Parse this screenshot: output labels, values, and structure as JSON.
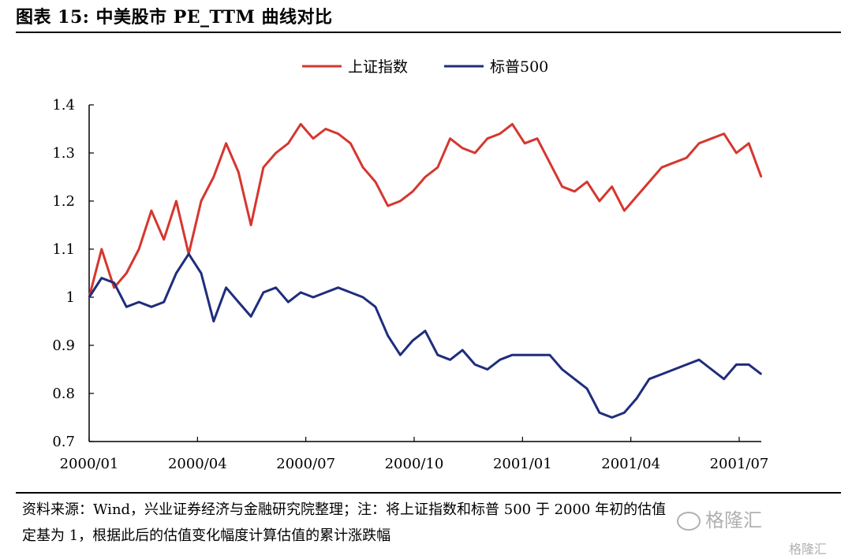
{
  "header": {
    "title": "图表 15:  中美股市 PE_TTM 曲线对比"
  },
  "footnote": {
    "line1": "资料来源：Wind，兴业证券经济与金融研究院整理；注：将上证指数和标普 500 于 2000 年初的估值",
    "line2": "定基为 1，根据此后的估值变化幅度计算估值的累计涨跌幅"
  },
  "watermark": {
    "text": "格隆汇",
    "small": "格隆汇"
  },
  "colors": {
    "shanghai": "#d5372f",
    "sp500": "#1f2d7d",
    "axis": "#000000"
  },
  "chart_data": {
    "type": "line",
    "title": "",
    "xlabel": "",
    "ylabel": "",
    "ylim": [
      0.7,
      1.4
    ],
    "yticks": [
      "0.7",
      "0.8",
      "0.9",
      "1",
      "1.1",
      "1.2",
      "1.3",
      "1.4"
    ],
    "xtick_labels": [
      "2000/01",
      "2000/04",
      "2000/07",
      "2000/10",
      "2001/01",
      "2001/04",
      "2001/07"
    ],
    "grid": false,
    "legend_position": "top-center",
    "x": [
      "2000/01",
      "2000/01",
      "2000/02",
      "2000/02",
      "2000/03",
      "2000/03",
      "2000/03",
      "2000/04",
      "2000/04",
      "2000/04",
      "2000/05",
      "2000/05",
      "2000/05",
      "2000/06",
      "2000/06",
      "2000/06",
      "2000/07",
      "2000/07",
      "2000/07",
      "2000/08",
      "2000/08",
      "2000/08",
      "2000/09",
      "2000/09",
      "2000/09",
      "2000/10",
      "2000/10",
      "2000/10",
      "2000/11",
      "2000/11",
      "2000/11",
      "2000/12",
      "2000/12",
      "2000/12",
      "2001/01",
      "2001/01",
      "2001/01",
      "2001/02",
      "2001/02",
      "2001/02",
      "2001/03",
      "2001/03",
      "2001/03",
      "2001/04",
      "2001/04",
      "2001/04",
      "2001/05",
      "2001/05",
      "2001/05",
      "2001/06",
      "2001/06",
      "2001/06",
      "2001/07",
      "2001/07",
      "2001/07"
    ],
    "series": [
      {
        "name": "上证指数",
        "color": "#d5372f",
        "values": [
          1.0,
          1.1,
          1.02,
          1.05,
          1.1,
          1.18,
          1.12,
          1.2,
          1.09,
          1.2,
          1.25,
          1.32,
          1.26,
          1.15,
          1.27,
          1.3,
          1.32,
          1.36,
          1.33,
          1.35,
          1.34,
          1.32,
          1.27,
          1.24,
          1.19,
          1.2,
          1.22,
          1.25,
          1.27,
          1.33,
          1.31,
          1.3,
          1.33,
          1.34,
          1.36,
          1.32,
          1.33,
          1.28,
          1.23,
          1.22,
          1.24,
          1.2,
          1.23,
          1.18,
          1.21,
          1.24,
          1.27,
          1.28,
          1.29,
          1.32,
          1.33,
          1.34,
          1.3,
          1.32,
          1.25
        ]
      },
      {
        "name": "标普500",
        "color": "#1f2d7d",
        "values": [
          1.0,
          1.04,
          1.03,
          0.98,
          0.99,
          0.98,
          0.99,
          1.05,
          1.09,
          1.05,
          0.95,
          1.02,
          0.99,
          0.96,
          1.01,
          1.02,
          0.99,
          1.01,
          1.0,
          1.01,
          1.02,
          1.01,
          1.0,
          0.98,
          0.92,
          0.88,
          0.91,
          0.93,
          0.88,
          0.87,
          0.89,
          0.86,
          0.85,
          0.87,
          0.88,
          0.88,
          0.88,
          0.88,
          0.85,
          0.83,
          0.81,
          0.76,
          0.75,
          0.76,
          0.79,
          0.83,
          0.84,
          0.85,
          0.86,
          0.87,
          0.85,
          0.83,
          0.86,
          0.86,
          0.84
        ]
      }
    ]
  }
}
